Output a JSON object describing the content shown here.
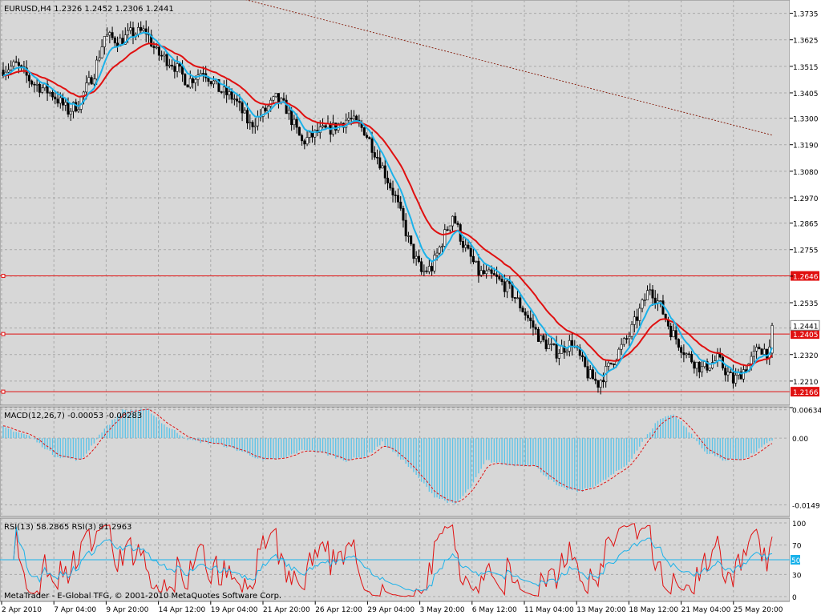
{
  "window": {
    "title": "EURUSD,H4  1.2326 1.2452 1.2306 1.2441",
    "footer": "MetaTrader - E-Global TFG, © 2001-2010 MetaQuotes Software Corp."
  },
  "colors": {
    "background": "#ffffff",
    "pane": "#d7d7d7",
    "grid": "#a9a9a9",
    "bull": "#ffffff",
    "bear": "#000000",
    "ma_fast": "#1ab2ea",
    "ma_slow": "#e01010",
    "ma_long": "#8b2a1a",
    "level": "#e01010",
    "macd_hist": "#5fc4e8",
    "macd_signal": "#e01010",
    "rsi_slow": "#1ab2ea",
    "rsi_fast": "#e01010"
  },
  "chart_data": [
    {
      "type": "candlestick",
      "symbol": "EURUSD",
      "timeframe": "H4",
      "header": "EURUSD,H4  1.2326 1.2452 1.2306 1.2441",
      "ylim": [
        1.211,
        1.379
      ],
      "yticks": [
        1.3735,
        1.3625,
        1.3515,
        1.3405,
        1.33,
        1.319,
        1.308,
        1.297,
        1.2865,
        1.2755,
        1.2645,
        1.2535,
        1.243,
        1.232,
        1.221,
        1.21
      ],
      "ytick_labels": [
        "1.3735",
        "1.3625",
        "1.3515",
        "1.3405",
        "1.3300",
        "1.3190",
        "1.3080",
        "1.2970",
        "1.2865",
        "1.2755",
        "",
        "1.2535",
        "",
        "1.2320",
        "1.2210",
        ""
      ],
      "xlabels": [
        "2 Apr 2010",
        "7 Apr 04:00",
        "9 Apr 20:00",
        "14 Apr 12:00",
        "19 Apr 04:00",
        "21 Apr 20:00",
        "26 Apr 12:00",
        "29 Apr 04:00",
        "3 May 20:00",
        "6 May 12:00",
        "11 May 04:00",
        "13 May 20:00",
        "18 May 12:00",
        "21 May 04:00",
        "25 May 20:00"
      ],
      "price_anchors": [
        [
          0,
          1.35
        ],
        [
          6,
          1.352
        ],
        [
          12,
          1.345
        ],
        [
          20,
          1.34
        ],
        [
          26,
          1.333
        ],
        [
          30,
          1.336
        ],
        [
          36,
          1.349
        ],
        [
          40,
          1.364
        ],
        [
          46,
          1.362
        ],
        [
          50,
          1.365
        ],
        [
          56,
          1.366
        ],
        [
          60,
          1.357
        ],
        [
          66,
          1.353
        ],
        [
          72,
          1.345
        ],
        [
          78,
          1.35
        ],
        [
          84,
          1.342
        ],
        [
          90,
          1.338
        ],
        [
          96,
          1.327
        ],
        [
          100,
          1.331
        ],
        [
          106,
          1.338
        ],
        [
          110,
          1.334
        ],
        [
          116,
          1.32
        ],
        [
          122,
          1.324
        ],
        [
          128,
          1.326
        ],
        [
          134,
          1.33
        ],
        [
          140,
          1.325
        ],
        [
          146,
          1.312
        ],
        [
          152,
          1.297
        ],
        [
          158,
          1.276
        ],
        [
          162,
          1.266
        ],
        [
          166,
          1.268
        ],
        [
          170,
          1.279
        ],
        [
          174,
          1.29
        ],
        [
          178,
          1.278
        ],
        [
          184,
          1.266
        ],
        [
          190,
          1.264
        ],
        [
          196,
          1.259
        ],
        [
          202,
          1.249
        ],
        [
          208,
          1.238
        ],
        [
          214,
          1.233
        ],
        [
          220,
          1.237
        ],
        [
          226,
          1.224
        ],
        [
          230,
          1.22
        ],
        [
          236,
          1.23
        ],
        [
          242,
          1.24
        ],
        [
          246,
          1.25
        ],
        [
          250,
          1.26
        ],
        [
          254,
          1.252
        ],
        [
          258,
          1.242
        ],
        [
          264,
          1.232
        ],
        [
          270,
          1.226
        ],
        [
          276,
          1.23
        ],
        [
          282,
          1.221
        ],
        [
          288,
          1.228
        ],
        [
          292,
          1.235
        ],
        [
          296,
          1.2326
        ]
      ],
      "last_candle": {
        "open": 1.2326,
        "high": 1.2452,
        "low": 1.2306,
        "close": 1.2441
      },
      "long_ma": {
        "from": [
          0,
          1.405
        ],
        "to": [
          296,
          1.323
        ]
      },
      "levels": [
        {
          "value": 1.2646,
          "label": "1.2646"
        },
        {
          "value": 1.2405,
          "label": "1.2405"
        },
        {
          "value": 1.2166,
          "label": "1.2166"
        }
      ],
      "last_price": {
        "value": 1.2441,
        "label": "1.2441"
      }
    },
    {
      "type": "histogram",
      "title": "MACD(12,26,7) -0.00053 -0.00283",
      "ylim": [
        -0.0175,
        0.007
      ],
      "ytick_labels": [
        "0.00634",
        "0.00",
        "-0.0149"
      ],
      "yticks": [
        0.00634,
        0.0,
        -0.0149
      ],
      "hist_anchors": [
        [
          0,
          0.0025
        ],
        [
          10,
          0.0005
        ],
        [
          20,
          -0.004
        ],
        [
          30,
          -0.005
        ],
        [
          38,
          0.0015
        ],
        [
          46,
          0.0062
        ],
        [
          56,
          0.0063
        ],
        [
          62,
          0.003
        ],
        [
          72,
          -0.0005
        ],
        [
          84,
          -0.0015
        ],
        [
          92,
          -0.003
        ],
        [
          100,
          -0.005
        ],
        [
          108,
          -0.0045
        ],
        [
          116,
          -0.0025
        ],
        [
          124,
          -0.0035
        ],
        [
          132,
          -0.005
        ],
        [
          140,
          -0.004
        ],
        [
          146,
          -0.001
        ],
        [
          154,
          -0.005
        ],
        [
          166,
          -0.013
        ],
        [
          174,
          -0.0149
        ],
        [
          180,
          -0.011
        ],
        [
          186,
          -0.005
        ],
        [
          194,
          -0.006
        ],
        [
          204,
          -0.006
        ],
        [
          214,
          -0.011
        ],
        [
          222,
          -0.012
        ],
        [
          230,
          -0.01
        ],
        [
          240,
          -0.006
        ],
        [
          246,
          -0.001
        ],
        [
          252,
          0.004
        ],
        [
          258,
          0.0055
        ],
        [
          262,
          0.003
        ],
        [
          270,
          -0.003
        ],
        [
          278,
          -0.005
        ],
        [
          286,
          -0.0045
        ],
        [
          296,
          -0.0005
        ]
      ],
      "signal_lag": 5
    },
    {
      "type": "line",
      "title": "RSI(13) 58.2865  RSI(3) 81.2963",
      "ylim": [
        0,
        100
      ],
      "yticks": [
        100,
        70,
        50,
        30,
        0
      ],
      "ytick_labels": [
        "100",
        "70",
        "50",
        "30",
        "0"
      ],
      "level": {
        "value": 50,
        "label": "50"
      },
      "last": {
        "rsi13": 58.2865,
        "rsi3": 81.2963
      }
    }
  ]
}
